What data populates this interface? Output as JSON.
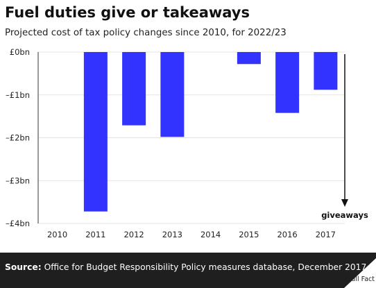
{
  "title": "Fuel duties give or takeaways",
  "subtitle": "Projected cost of tax policy changes since 2010, for 2022/23",
  "annotation": "giveaways",
  "footer": {
    "source_label": "Source:",
    "source_text": " Office for Budget Responsibility Policy measures database, December 2017",
    "logo_text": "Full Fact"
  },
  "colors": {
    "bar": "#3333ff",
    "grid": "#e3e3e3",
    "footer_bg": "#1f1f1f"
  },
  "chart_data": {
    "type": "bar",
    "categories": [
      "2010",
      "2011",
      "2012",
      "2013",
      "2014",
      "2015",
      "2016",
      "2017"
    ],
    "values": [
      0,
      -3.72,
      -1.71,
      -1.98,
      0,
      -0.28,
      -1.42,
      -0.88
    ],
    "ylim": [
      -4,
      0
    ],
    "yticks": [
      0,
      -1,
      -2,
      -3,
      -4
    ],
    "ytick_labels": [
      "£0bn",
      "–£1bn",
      "–£2bn",
      "–£3bn",
      "–£4bn"
    ],
    "grid": true
  }
}
